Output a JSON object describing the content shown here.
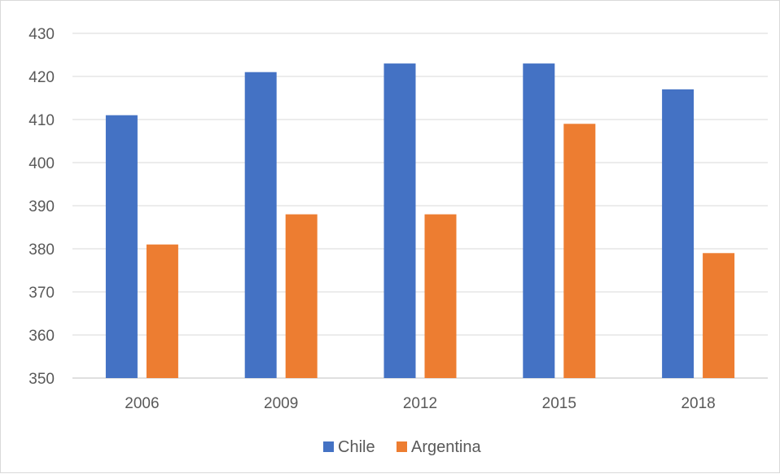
{
  "chart_data": {
    "type": "bar",
    "categories": [
      "2006",
      "2009",
      "2012",
      "2015",
      "2018"
    ],
    "series": [
      {
        "name": "Chile",
        "color": "#4472C4",
        "values": [
          411,
          421,
          423,
          423,
          417
        ]
      },
      {
        "name": "Argentina",
        "color": "#ED7D31",
        "values": [
          381,
          388,
          388,
          409,
          379
        ]
      }
    ],
    "ylim": [
      350,
      430
    ],
    "yticks": [
      "350",
      "360",
      "370",
      "380",
      "390",
      "400",
      "410",
      "420",
      "430"
    ],
    "grid": true,
    "legend_position": "bottom"
  }
}
